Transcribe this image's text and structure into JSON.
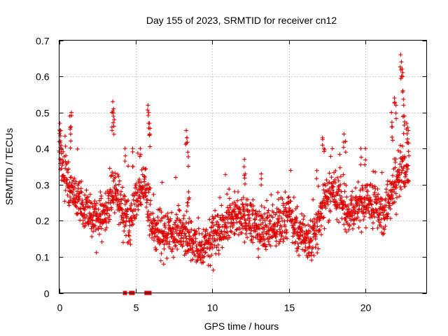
{
  "chart_data": {
    "type": "scatter",
    "title": "Day 155 of 2023, SRMTID for receiver cn12",
    "xlabel": "GPS time / hours",
    "ylabel": "SRMTID / TECUs",
    "xlim": [
      0,
      24
    ],
    "ylim": [
      0,
      0.7
    ],
    "xticks": [
      0,
      5,
      10,
      15,
      20
    ],
    "yticks": [
      0,
      0.1,
      0.2,
      0.3,
      0.4,
      0.5,
      0.6,
      0.7
    ],
    "xtick_labels": [
      "0",
      "5",
      "10",
      "15",
      "20"
    ],
    "ytick_labels": [
      "0",
      "0.1",
      "0.2",
      "0.3",
      "0.4",
      "0.5",
      "0.6",
      "0.7"
    ],
    "grid": true,
    "marker": "plus",
    "color": "#e00000",
    "trend": [
      [
        0.0,
        0.4
      ],
      [
        0.3,
        0.32
      ],
      [
        0.6,
        0.3
      ],
      [
        0.9,
        0.28
      ],
      [
        1.3,
        0.25
      ],
      [
        2.0,
        0.21
      ],
      [
        2.6,
        0.2
      ],
      [
        3.1,
        0.22
      ],
      [
        3.6,
        0.28
      ],
      [
        4.1,
        0.24
      ],
      [
        4.6,
        0.2
      ],
      [
        5.2,
        0.27
      ],
      [
        5.6,
        0.3
      ],
      [
        6.1,
        0.17
      ],
      [
        7.0,
        0.16
      ],
      [
        8.0,
        0.17
      ],
      [
        8.6,
        0.14
      ],
      [
        9.2,
        0.12
      ],
      [
        9.8,
        0.14
      ],
      [
        10.5,
        0.17
      ],
      [
        11.2,
        0.2
      ],
      [
        11.8,
        0.22
      ],
      [
        12.4,
        0.21
      ],
      [
        13.0,
        0.17
      ],
      [
        13.8,
        0.17
      ],
      [
        14.6,
        0.2
      ],
      [
        15.2,
        0.21
      ],
      [
        15.8,
        0.16
      ],
      [
        16.4,
        0.14
      ],
      [
        16.9,
        0.18
      ],
      [
        17.4,
        0.26
      ],
      [
        18.0,
        0.28
      ],
      [
        18.6,
        0.23
      ],
      [
        19.2,
        0.22
      ],
      [
        19.8,
        0.26
      ],
      [
        20.3,
        0.25
      ],
      [
        20.8,
        0.23
      ],
      [
        21.3,
        0.22
      ],
      [
        21.9,
        0.31
      ],
      [
        22.4,
        0.34
      ],
      [
        22.8,
        0.36
      ]
    ],
    "spikes": [
      [
        0.05,
        0.47
      ],
      [
        0.1,
        0.45
      ],
      [
        0.7,
        0.49
      ],
      [
        0.8,
        0.5
      ],
      [
        0.75,
        0.44
      ],
      [
        3.5,
        0.53
      ],
      [
        3.55,
        0.51
      ],
      [
        3.6,
        0.48
      ],
      [
        3.45,
        0.5
      ],
      [
        5.8,
        0.52
      ],
      [
        5.85,
        0.5
      ],
      [
        5.9,
        0.47
      ],
      [
        5.9,
        0.44
      ],
      [
        8.3,
        0.45
      ],
      [
        8.35,
        0.43
      ],
      [
        8.4,
        0.39
      ],
      [
        8.45,
        0.28
      ],
      [
        8.4,
        0.25
      ],
      [
        12.1,
        0.37
      ],
      [
        12.15,
        0.33
      ],
      [
        13.2,
        0.33
      ],
      [
        18.6,
        0.44
      ],
      [
        18.7,
        0.42
      ],
      [
        19.7,
        0.4
      ],
      [
        20.0,
        0.4
      ],
      [
        21.9,
        0.54
      ],
      [
        22.0,
        0.52
      ],
      [
        22.3,
        0.66
      ],
      [
        22.35,
        0.64
      ],
      [
        22.4,
        0.62
      ],
      [
        22.45,
        0.56
      ],
      [
        22.5,
        0.52
      ],
      [
        22.55,
        0.49
      ],
      [
        22.7,
        0.47
      ],
      [
        22.8,
        0.45
      ],
      [
        21.7,
        0.5
      ],
      [
        21.75,
        0.46
      ],
      [
        17.2,
        0.43
      ],
      [
        17.3,
        0.4
      ],
      [
        4.3,
        0.4
      ],
      [
        4.8,
        0.4
      ],
      [
        5.3,
        0.4
      ]
    ],
    "zero_points": [
      4.3,
      4.7,
      4.8,
      5.7,
      5.9
    ],
    "spread": 0.055,
    "n_points": 1900
  }
}
